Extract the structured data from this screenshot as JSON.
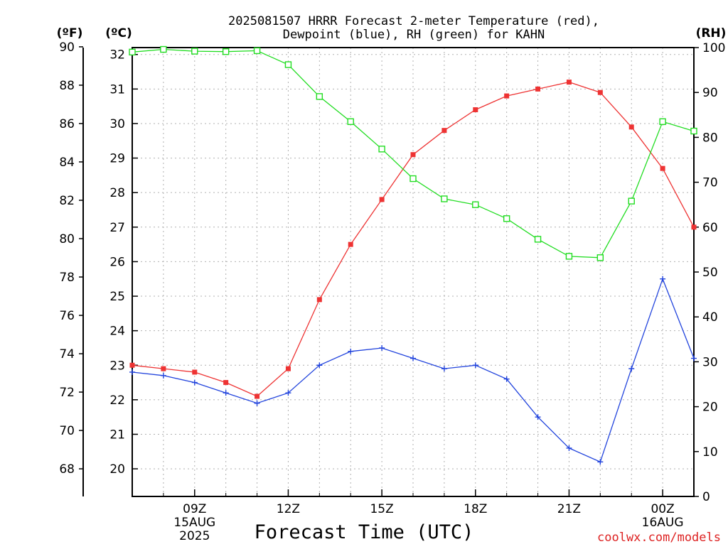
{
  "title_line1": "2025081507 HRRR Forecast 2-meter Temperature (red),",
  "title_line2": "Dewpoint (blue), RH (green) for KAHN",
  "x_axis_title": "Forecast Time (UTC)",
  "credit": "coolwx.com/models",
  "units": {
    "fahrenheit": "(ºF)",
    "celsius": "(ºC)",
    "rh": "(RH)"
  },
  "colors": {
    "temperature": "#ee3333",
    "dewpoint": "#2244dd",
    "rh": "#22dd22",
    "credit": "#dd2222"
  },
  "chart_data": {
    "type": "line",
    "x_hours_utc": [
      7,
      8,
      9,
      10,
      11,
      12,
      13,
      14,
      15,
      16,
      17,
      18,
      19,
      20,
      21,
      22,
      23,
      24,
      25
    ],
    "x_ticks": [
      {
        "hour": 9,
        "label": "09Z",
        "sub1": "15AUG",
        "sub2": "2025"
      },
      {
        "hour": 12,
        "label": "12Z",
        "sub1": "",
        "sub2": ""
      },
      {
        "hour": 15,
        "label": "15Z",
        "sub1": "",
        "sub2": ""
      },
      {
        "hour": 18,
        "label": "18Z",
        "sub1": "",
        "sub2": ""
      },
      {
        "hour": 21,
        "label": "21Z",
        "sub1": "",
        "sub2": ""
      },
      {
        "hour": 24,
        "label": "00Z",
        "sub1": "16AUG",
        "sub2": ""
      }
    ],
    "xlim": [
      7,
      25
    ],
    "celsius_ylim": [
      19.2,
      32.2
    ],
    "celsius_ticks": [
      20,
      21,
      22,
      23,
      24,
      25,
      26,
      27,
      28,
      29,
      30,
      31,
      32
    ],
    "fahrenheit_ticks": [
      68,
      70,
      72,
      74,
      76,
      78,
      80,
      82,
      84,
      86,
      88,
      90
    ],
    "rh_ylim": [
      0,
      100
    ],
    "rh_ticks": [
      0,
      10,
      20,
      30,
      40,
      50,
      60,
      70,
      80,
      90,
      100
    ],
    "grid": true,
    "series": [
      {
        "key": "temperature",
        "axis": "celsius",
        "marker": "filled-square",
        "values": [
          23.0,
          22.9,
          22.8,
          22.5,
          22.1,
          22.9,
          24.9,
          26.5,
          27.8,
          29.1,
          29.8,
          30.4,
          30.8,
          31.0,
          31.2,
          30.9,
          29.9,
          28.7,
          27.0
        ]
      },
      {
        "key": "dewpoint",
        "axis": "celsius",
        "marker": "plus",
        "values": [
          22.8,
          22.7,
          22.5,
          22.2,
          21.9,
          22.2,
          23.0,
          23.4,
          23.5,
          23.2,
          22.9,
          23.0,
          22.6,
          21.5,
          20.6,
          20.2,
          22.9,
          25.5,
          23.2
        ]
      },
      {
        "key": "rh",
        "axis": "rh",
        "marker": "open-square",
        "values": [
          99,
          99.6,
          99.2,
          99.1,
          99.3,
          96.2,
          89.1,
          83.5,
          77.4,
          70.8,
          66.3,
          65.0,
          61.9,
          57.3,
          53.5,
          53.2,
          65.8,
          83.5,
          81.4
        ]
      }
    ]
  }
}
